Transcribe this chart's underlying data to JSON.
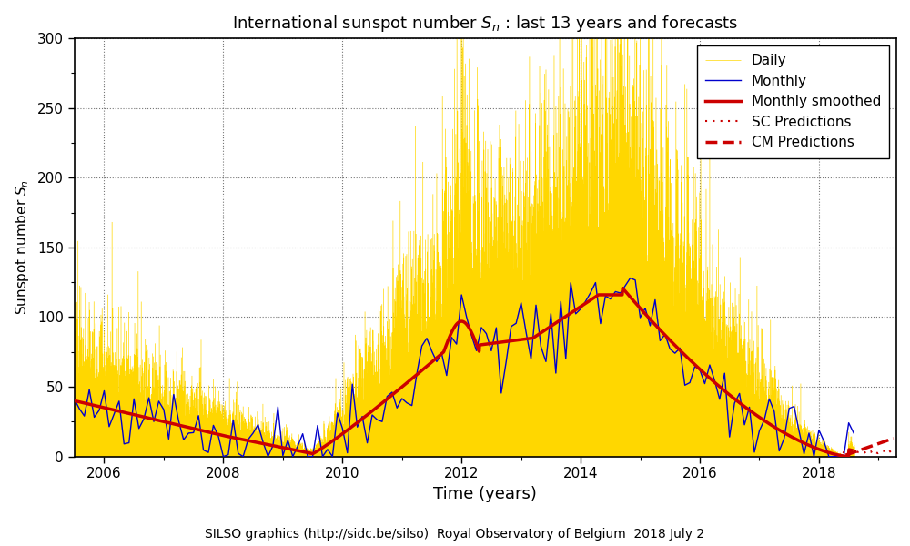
{
  "title": "International sunspot number $S_{n}$ : last 13 years and forecasts",
  "xlabel": "Time (years)",
  "ylabel": "Sunspot number $S_{n}$",
  "footer": "SILSO graphics (http://sidc.be/silso)  Royal Observatory of Belgium  2018 July 2",
  "ylim": [
    0,
    300
  ],
  "xlim_start": 2005.5,
  "xlim_end": 2019.3,
  "grid_color": "#555555",
  "bg_color": "#ffffff",
  "daily_color": "#FFD700",
  "monthly_color": "#0000CC",
  "smoothed_color": "#CC0000",
  "sc_pred_color": "#CC0000",
  "cm_pred_color": "#CC0000",
  "legend_loc": "upper right",
  "yticks": [
    0,
    50,
    100,
    150,
    200,
    250,
    300
  ],
  "xticks": [
    2006,
    2008,
    2010,
    2012,
    2014,
    2016,
    2018
  ]
}
